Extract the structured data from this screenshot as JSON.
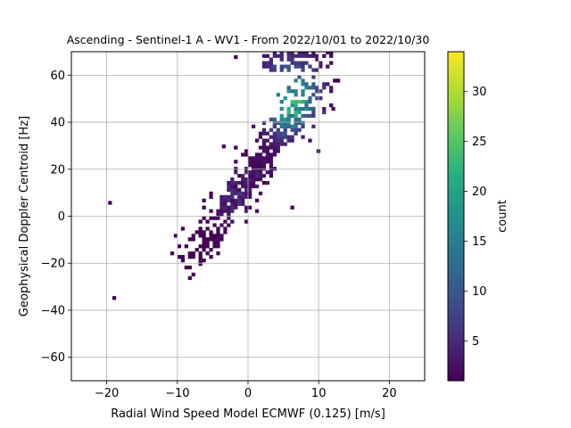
{
  "chart_data": {
    "type": "heatmap",
    "title": "Ascending - Sentinel-1 A - WV1 - From 2022/10/01 to 2022/10/30",
    "xlabel": "Radial Wind Speed Model ECMWF (0.125) [m/s]",
    "ylabel": "Geophysical Doppler Centroid [Hz]",
    "xlim": [
      -25,
      25
    ],
    "ylim": [
      -70,
      70
    ],
    "x_ticks": [
      -20,
      -10,
      0,
      10,
      20
    ],
    "y_ticks": [
      -60,
      -40,
      -20,
      0,
      20,
      40,
      60
    ],
    "x_tick_labels": [
      "−20",
      "−10",
      "0",
      "10",
      "20"
    ],
    "y_tick_labels": [
      "−60",
      "−40",
      "−20",
      "0",
      "20",
      "40",
      "60"
    ],
    "grid": true,
    "colormap": "viridis",
    "colorbar": {
      "label": "count",
      "range": [
        1,
        34
      ],
      "ticks": [
        5,
        10,
        15,
        20,
        25,
        30
      ],
      "tick_labels": [
        "5",
        "10",
        "15",
        "20",
        "25",
        "30"
      ]
    },
    "bin_width_x": 0.5,
    "bin_width_y": 1.5,
    "density_model": {
      "description": "2D histogram counts along linear relation y ≈ 4.2·x + 15",
      "slope": 4.2,
      "intercept": 15,
      "x_range": [
        -20,
        16
      ],
      "y_range": [
        -36,
        70
      ],
      "peak_count": 34,
      "peak_location": [
        6,
        50
      ]
    },
    "isolated_bins": [
      {
        "x": -19.8,
        "y": 5,
        "count": 1
      },
      {
        "x": -19.2,
        "y": -35.5,
        "count": 1
      },
      {
        "x": -3.7,
        "y": 29,
        "count": 1
      },
      {
        "x": 12.3,
        "y": 57,
        "count": 1
      },
      {
        "x": 9.7,
        "y": 27,
        "count": 1
      },
      {
        "x": 6.0,
        "y": 3,
        "count": 1
      },
      {
        "x": -2.0,
        "y": 67,
        "count": 1
      },
      {
        "x": 11.8,
        "y": 45,
        "count": 1
      }
    ]
  }
}
